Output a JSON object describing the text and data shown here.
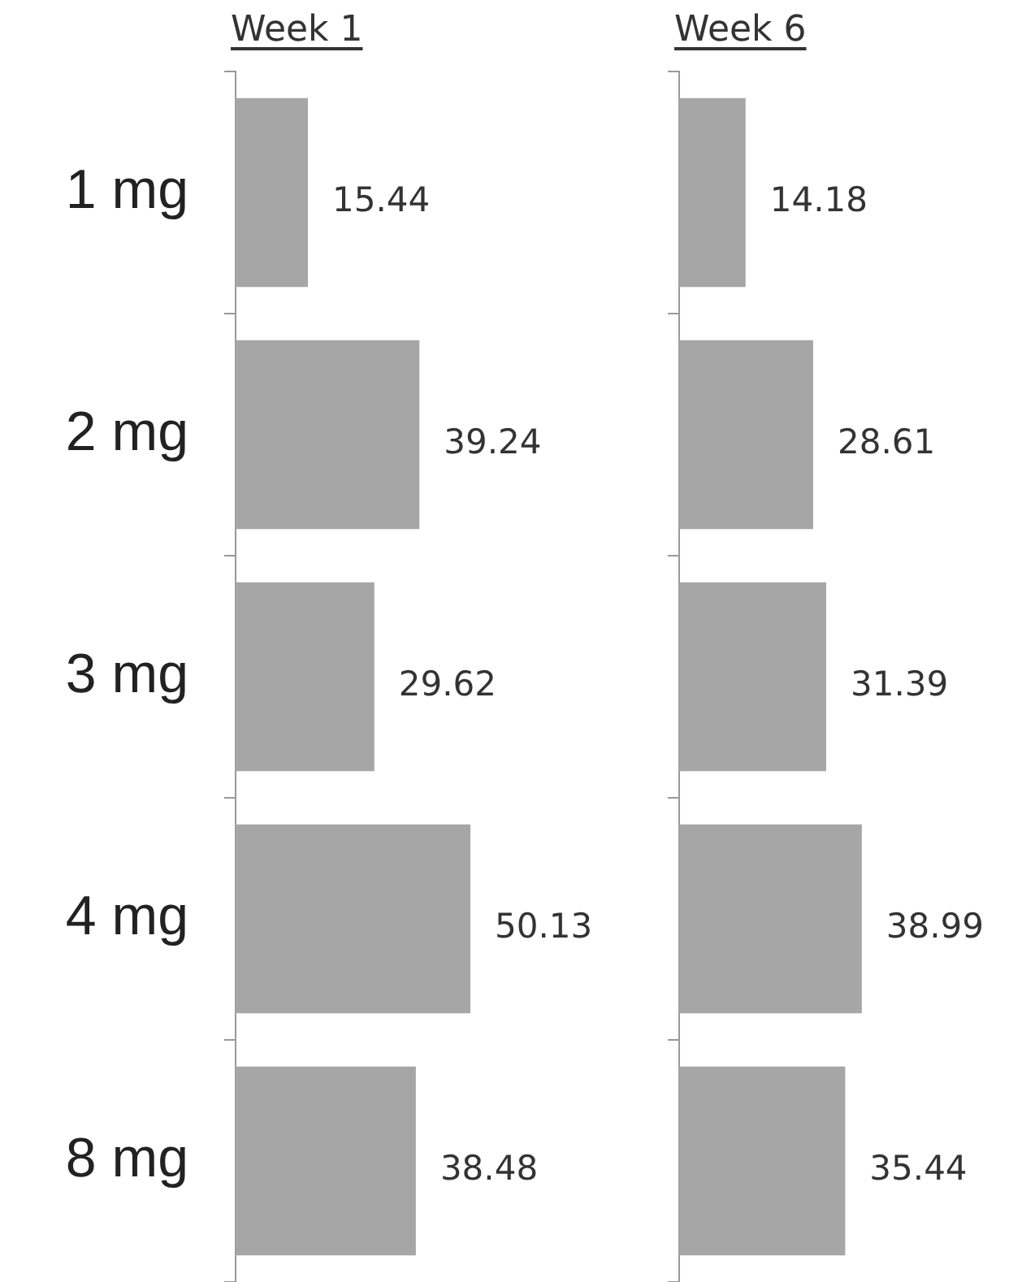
{
  "chart_data": [
    {
      "type": "bar",
      "title": "Week 1",
      "orientation": "horizontal",
      "categories": [
        "1 mg",
        "2 mg",
        "3 mg",
        "4 mg",
        "8 mg"
      ],
      "values": [
        15.44,
        39.24,
        29.62,
        50.13,
        38.48
      ],
      "color": "#a6a6a6",
      "data_labels": true,
      "tick_labels": "y",
      "grid": false,
      "legend": false
    },
    {
      "type": "bar",
      "title": "Week 6",
      "orientation": "horizontal",
      "categories": [
        null,
        null,
        null,
        null,
        null
      ],
      "values": [
        14.18,
        28.61,
        31.39,
        38.99,
        35.44
      ],
      "color": "#a6a6a6",
      "data_labels": true,
      "tick_labels": false,
      "grid": false,
      "legend": false
    }
  ]
}
